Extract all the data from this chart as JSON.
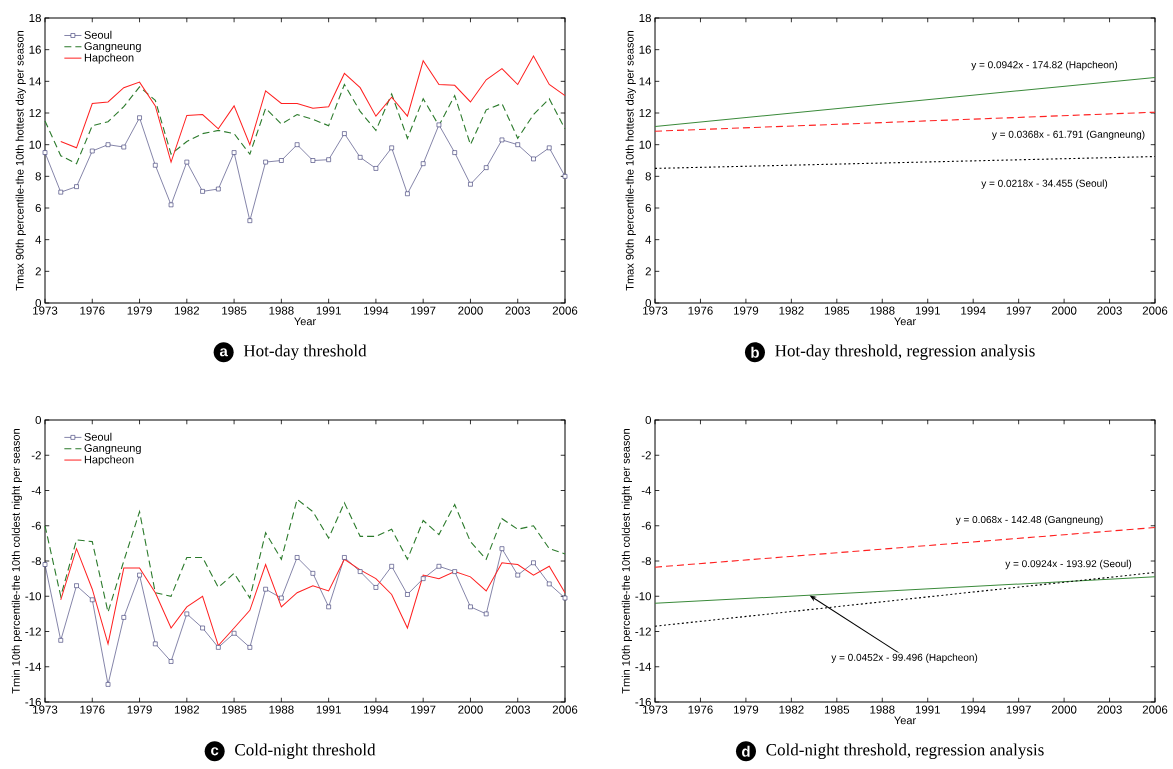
{
  "chart_data": [
    {
      "type": "line",
      "title": "Hot-day threshold",
      "xlabel": "Year",
      "ylabel": "Tmax 90th percentile-the 10th hottest day per season",
      "annotations": [
        "a"
      ],
      "x": [
        1973,
        1974,
        1975,
        1976,
        1977,
        1978,
        1979,
        1980,
        1981,
        1982,
        1983,
        1984,
        1985,
        1986,
        1987,
        1988,
        1989,
        1990,
        1991,
        1992,
        1993,
        1994,
        1995,
        1996,
        1997,
        1998,
        1999,
        2000,
        2001,
        2002,
        2003,
        2004,
        2005,
        2006
      ],
      "series": [
        {
          "name": "Seoul",
          "color": "#33336e",
          "marker": "square",
          "line_style": "solid",
          "values": [
            9.5,
            7.0,
            7.35,
            9.6,
            10.0,
            9.85,
            11.7,
            8.7,
            6.2,
            8.9,
            7.05,
            7.2,
            9.5,
            5.2,
            8.9,
            9.0,
            10.0,
            9.0,
            9.05,
            10.7,
            9.2,
            8.5,
            9.8,
            6.9,
            8.8,
            11.25,
            9.5,
            7.5,
            8.55,
            10.3,
            10.0,
            9.1,
            9.8,
            8.0
          ]
        },
        {
          "name": "Gangneung",
          "color": "#2b7a2b",
          "line_style": "dashed",
          "values": [
            11.5,
            9.3,
            8.8,
            11.2,
            11.45,
            12.4,
            13.65,
            12.8,
            9.4,
            10.2,
            10.7,
            10.9,
            10.7,
            9.4,
            12.3,
            11.3,
            11.9,
            11.6,
            11.2,
            13.8,
            12.1,
            10.9,
            13.2,
            10.4,
            12.9,
            11.2,
            13.1,
            10.0,
            12.2,
            12.6,
            10.4,
            11.9,
            12.9,
            11.0
          ]
        },
        {
          "name": "Hapcheon",
          "color": "#ff2020",
          "line_style": "solid",
          "values": [
            null,
            10.2,
            9.8,
            12.6,
            12.7,
            13.6,
            13.95,
            12.45,
            8.9,
            11.85,
            11.9,
            11.0,
            12.45,
            10.0,
            13.4,
            12.6,
            12.6,
            12.3,
            12.4,
            14.5,
            13.6,
            11.8,
            13.0,
            11.8,
            15.3,
            13.8,
            13.75,
            12.7,
            14.1,
            14.8,
            13.8,
            15.6,
            13.8,
            13.1
          ]
        }
      ],
      "xlim": [
        1973,
        2006
      ],
      "xticks": [
        1973,
        1976,
        1979,
        1982,
        1985,
        1988,
        1991,
        1994,
        1997,
        2000,
        2003,
        2006
      ],
      "ylim": [
        0,
        18
      ],
      "yticks": [
        0,
        2,
        4,
        6,
        8,
        10,
        12,
        14,
        16,
        18
      ],
      "legend": "top left"
    },
    {
      "type": "line",
      "title": "Hot-day threshold, regression analysis",
      "xlabel": "Year",
      "ylabel": "Tmax 90th percentile-the 10th hottest day per season",
      "annotations": [
        "b",
        "y = 0.0942x - 174.82 (Hapcheon)",
        "y = 0.0368x - 61.791 (Gangneung)",
        "y = 0.0218x - 34.455 (Seoul)"
      ],
      "x": [
        1973,
        2006
      ],
      "series": [
        {
          "color": "#3a8a3a",
          "line_style": "solid",
          "values": [
            11.15,
            14.25
          ]
        },
        {
          "color": "#ff2020",
          "line_style": "dashed",
          "values": [
            10.85,
            12.05
          ]
        },
        {
          "color": "#000000",
          "line_style": "dotted",
          "values": [
            8.5,
            9.25
          ]
        }
      ],
      "xlim": [
        1973,
        2006
      ],
      "xticks": [
        1973,
        1976,
        1979,
        1982,
        1985,
        1988,
        1991,
        1994,
        1997,
        2000,
        2003,
        2006
      ],
      "ylim": [
        0,
        18
      ],
      "yticks": [
        0,
        2,
        4,
        6,
        8,
        10,
        12,
        14,
        16,
        18
      ]
    },
    {
      "type": "line",
      "title": "Cold-night threshold",
      "ylabel": "Tmin 10th percentile-the 10th coldest night per season",
      "annotations": [
        "c"
      ],
      "x": [
        1973,
        1974,
        1975,
        1976,
        1977,
        1978,
        1979,
        1980,
        1981,
        1982,
        1983,
        1984,
        1985,
        1986,
        1987,
        1988,
        1989,
        1990,
        1991,
        1992,
        1993,
        1994,
        1995,
        1996,
        1997,
        1998,
        1999,
        2000,
        2001,
        2002,
        2003,
        2004,
        2005,
        2006
      ],
      "series": [
        {
          "name": "Seoul",
          "color": "#33336e",
          "marker": "square",
          "line_style": "solid",
          "values": [
            -8.2,
            -12.5,
            -9.4,
            -10.2,
            -15.0,
            -11.2,
            -8.8,
            -12.7,
            -13.7,
            -11.0,
            -11.8,
            -12.9,
            -12.1,
            -12.9,
            -9.6,
            -10.1,
            -7.8,
            -8.7,
            -10.6,
            -7.8,
            -8.6,
            -9.5,
            -8.3,
            -9.9,
            -9.0,
            -8.3,
            -8.6,
            -10.6,
            -11.0,
            -7.3,
            -8.8,
            -8.1,
            -9.3,
            -10.1
          ]
        },
        {
          "name": "Gangneung",
          "color": "#2b7a2b",
          "line_style": "dashed",
          "values": [
            -6.0,
            -10.0,
            -6.8,
            -6.9,
            -10.9,
            -8.0,
            -5.2,
            -9.8,
            -10.0,
            -7.8,
            -7.8,
            -9.5,
            -8.7,
            -10.1,
            -6.4,
            -7.9,
            -4.5,
            -5.2,
            -6.7,
            -4.7,
            -6.6,
            -6.6,
            -6.2,
            -7.9,
            -5.7,
            -6.5,
            -4.8,
            -6.9,
            -7.9,
            -5.6,
            -6.2,
            -6.0,
            -7.3,
            -7.6
          ]
        },
        {
          "name": "Hapcheon",
          "color": "#ff2020",
          "line_style": "solid",
          "values": [
            null,
            -10.2,
            -7.3,
            -9.6,
            -12.7,
            -8.4,
            -8.4,
            -9.8,
            -11.8,
            -10.6,
            -10.0,
            -12.8,
            -11.8,
            -10.8,
            -8.2,
            -10.6,
            -9.8,
            -9.4,
            -9.7,
            -7.9,
            -8.5,
            -9.0,
            -9.9,
            -11.8,
            -8.8,
            -9.0,
            -8.6,
            -8.9,
            -9.7,
            -8.1,
            -8.2,
            -8.8,
            -8.3,
            -9.8
          ]
        }
      ],
      "xlim": [
        1973,
        2006
      ],
      "xticks": [
        1973,
        1976,
        1979,
        1982,
        1985,
        1988,
        1991,
        1994,
        1997,
        2000,
        2003,
        2006
      ],
      "ylim": [
        -16,
        0
      ],
      "yticks": [
        -16,
        -14,
        -12,
        -10,
        -8,
        -6,
        -4,
        -2,
        0
      ],
      "legend": "top left"
    },
    {
      "type": "line",
      "title": "Cold-night threshold, regression analysis",
      "xlabel": "Year",
      "ylabel": "Tmin 10th percentile-the 10th coldest night per season",
      "annotations": [
        "d",
        "y = 0.068x - 142.48 (Gangneung)",
        "y = 0.0924x - 193.92 (Seoul)",
        {
          "text": "y = 0.0452x - 99.496 (Hapcheon)",
          "x": 1983.2,
          "y": -9.95
        }
      ],
      "x": [
        1973,
        2006
      ],
      "series": [
        {
          "color": "#ff2020",
          "line_style": "dashed",
          "values": [
            -8.35,
            -6.1
          ]
        },
        {
          "color": "#3a8a3a",
          "line_style": "solid",
          "values": [
            -10.4,
            -8.9
          ]
        },
        {
          "color": "#000000",
          "line_style": "dotted",
          "values": [
            -11.7,
            -8.65
          ]
        }
      ],
      "xlim": [
        1973,
        2006
      ],
      "xticks": [
        1973,
        1976,
        1979,
        1982,
        1985,
        1988,
        1991,
        1994,
        1997,
        2000,
        2003,
        2006
      ],
      "ylim": [
        -16,
        0
      ],
      "yticks": [
        -16,
        -14,
        -12,
        -10,
        -8,
        -6,
        -4,
        -2,
        0
      ]
    }
  ]
}
